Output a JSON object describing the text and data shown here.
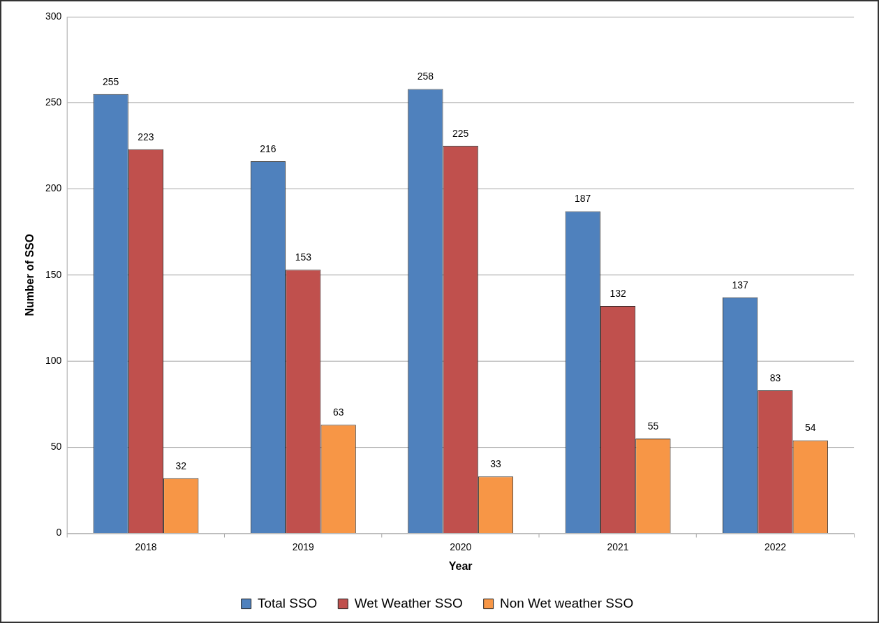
{
  "chart_data": {
    "type": "bar",
    "xlabel": "Year",
    "ylabel": "Number of SSO",
    "categories": [
      "2018",
      "2019",
      "2020",
      "2021",
      "2022"
    ],
    "series": [
      {
        "name": "Total SSO",
        "color": "#4f81bd",
        "values": [
          255,
          216,
          258,
          187,
          137
        ]
      },
      {
        "name": "Wet Weather SSO",
        "color": "#c0504d",
        "values": [
          223,
          153,
          225,
          132,
          83
        ]
      },
      {
        "name": "Non Wet weather SSO",
        "color": "#f79646",
        "values": [
          32,
          63,
          33,
          55,
          54
        ]
      }
    ],
    "ylim": [
      0,
      300
    ],
    "yticks": [
      0,
      50,
      100,
      150,
      200,
      250,
      300
    ],
    "grid": "y",
    "legend": "bottom",
    "data_labels": true
  }
}
